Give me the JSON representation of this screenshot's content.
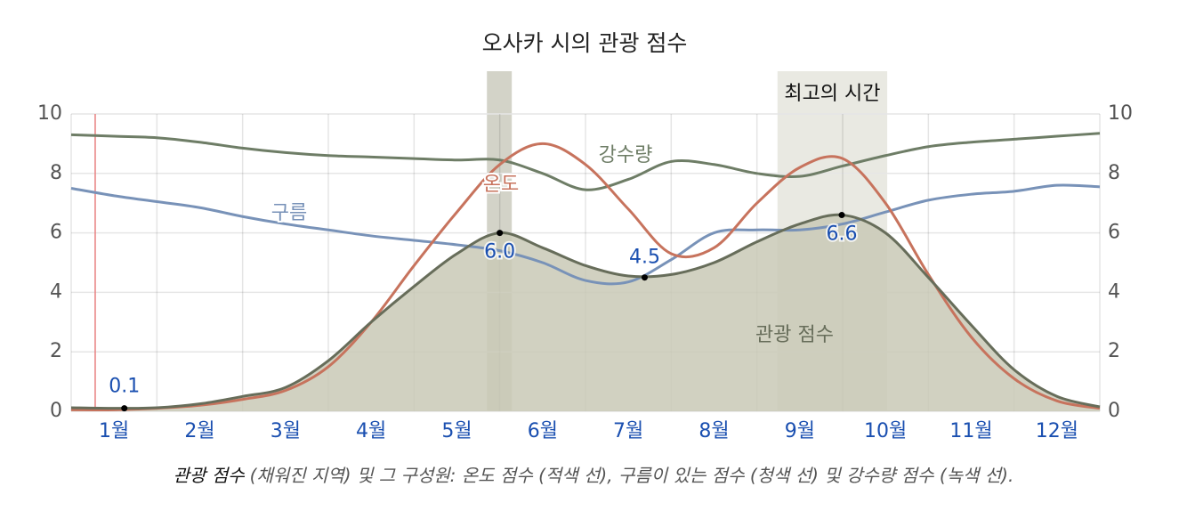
{
  "chart_data": {
    "type": "line",
    "title": "오사카 시의 관광 점수",
    "x": [
      0,
      0.5,
      1,
      1.5,
      2,
      2.5,
      3,
      3.5,
      4,
      4.5,
      5,
      5.5,
      6,
      6.5,
      7,
      7.5,
      8,
      8.5,
      9,
      9.5,
      10,
      10.5,
      11,
      11.5,
      12
    ],
    "xlim": [
      0,
      12
    ],
    "xticks": [
      {
        "value": 0.5,
        "label": "1월"
      },
      {
        "value": 1.5,
        "label": "2월"
      },
      {
        "value": 2.5,
        "label": "3월"
      },
      {
        "value": 3.5,
        "label": "4월"
      },
      {
        "value": 4.5,
        "label": "5월"
      },
      {
        "value": 5.5,
        "label": "6월"
      },
      {
        "value": 6.5,
        "label": "7월"
      },
      {
        "value": 7.5,
        "label": "8월"
      },
      {
        "value": 8.5,
        "label": "9월"
      },
      {
        "value": 9.5,
        "label": "10월"
      },
      {
        "value": 10.5,
        "label": "11월"
      },
      {
        "value": 11.5,
        "label": "12월"
      }
    ],
    "xgrid": [
      0,
      1,
      2,
      3,
      4,
      5,
      6,
      7,
      8,
      9,
      10,
      11,
      12
    ],
    "ylim": [
      0,
      10
    ],
    "yticks": [
      0,
      2,
      4,
      6,
      8,
      10
    ],
    "y2lim": [
      0,
      10
    ],
    "y2ticks": [
      0,
      2,
      4,
      6,
      8,
      10
    ],
    "grid": true,
    "series": [
      {
        "name": "강수량",
        "color": "#6e7d66",
        "values": [
          9.3,
          9.25,
          9.2,
          9.05,
          8.85,
          8.7,
          8.6,
          8.55,
          8.5,
          8.45,
          8.45,
          8.0,
          7.45,
          7.8,
          8.4,
          8.3,
          8.0,
          7.9,
          8.25,
          8.6,
          8.9,
          9.05,
          9.15,
          9.25,
          9.35
        ]
      },
      {
        "name": "구름",
        "color": "#7892b8",
        "values": [
          7.5,
          7.25,
          7.05,
          6.85,
          6.55,
          6.3,
          6.1,
          5.9,
          5.75,
          5.6,
          5.4,
          5.0,
          4.4,
          4.35,
          5.1,
          6.0,
          6.1,
          6.1,
          6.3,
          6.7,
          7.1,
          7.3,
          7.4,
          7.6,
          7.55
        ]
      },
      {
        "name": "온도",
        "color": "#c7735d",
        "values": [
          0.05,
          0.05,
          0.1,
          0.2,
          0.4,
          0.7,
          1.5,
          3.0,
          4.9,
          6.7,
          8.3,
          9.0,
          8.3,
          6.8,
          5.3,
          5.5,
          7.0,
          8.2,
          8.5,
          7.0,
          4.6,
          2.5,
          1.1,
          0.35,
          0.1
        ]
      },
      {
        "name": "관광 점수",
        "color": "#676d5a",
        "fill": "#c9c9b6",
        "values": [
          0.12,
          0.1,
          0.12,
          0.25,
          0.5,
          0.8,
          1.7,
          3.0,
          4.2,
          5.3,
          6.0,
          5.5,
          4.9,
          4.55,
          4.6,
          5.0,
          5.7,
          6.3,
          6.6,
          6.0,
          4.5,
          2.9,
          1.4,
          0.5,
          0.15
        ]
      }
    ],
    "annotations": [
      {
        "x": 0.62,
        "y": 0.1,
        "label": "0.1"
      },
      {
        "x": 5.0,
        "y": 6.0,
        "label": "6.0"
      },
      {
        "x": 6.69,
        "y": 4.5,
        "label": "4.5"
      },
      {
        "x": 8.99,
        "y": 6.6,
        "label": "6.6"
      }
    ],
    "highlights": [
      {
        "x": [
          4.85,
          5.14
        ],
        "color": "#d3d3c8"
      },
      {
        "x": [
          8.24,
          9.52
        ],
        "color": "#e9e9e2",
        "label": "최고의 시간"
      }
    ],
    "marker_x": 0.28,
    "marker_color": "#e88080",
    "caption": {
      "emphasis": "관광 점수",
      "text": "(채워진 지역) 및 그 구성원: 온도 점수 (적색 선), 구름이 있는 점수 (청색 선) 및 강수량 점수 (녹색 선)."
    }
  }
}
